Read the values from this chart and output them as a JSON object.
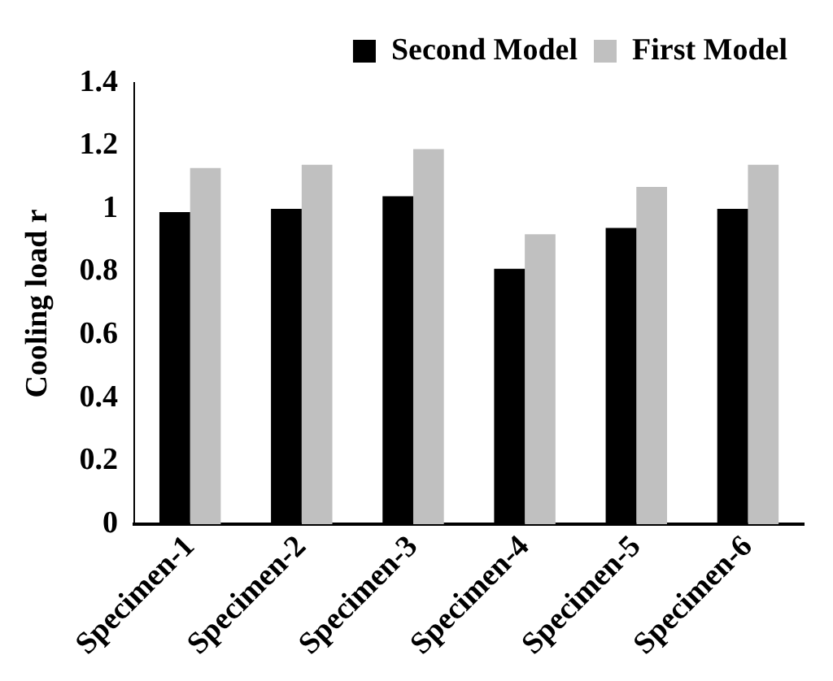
{
  "chart_data": {
    "type": "bar",
    "ylabel": "Cooling load r",
    "categories": [
      "Specimen-1",
      "Specimen-2",
      "Specimen-3",
      "Specimen-4",
      "Specimen-5",
      "Specimen-6"
    ],
    "series": [
      {
        "name": "Second Model",
        "color": "#000000",
        "values": [
          0.99,
          1.0,
          1.04,
          0.81,
          0.94,
          1.0
        ]
      },
      {
        "name": "First Model",
        "color": "#c0c0c0",
        "values": [
          1.13,
          1.14,
          1.19,
          0.92,
          1.07,
          1.14
        ]
      }
    ],
    "ylim": [
      0,
      1.4
    ],
    "yticks": [
      0,
      0.2,
      0.4,
      0.6,
      0.8,
      1,
      1.2,
      1.4
    ],
    "grid": false,
    "legend": "top right"
  }
}
